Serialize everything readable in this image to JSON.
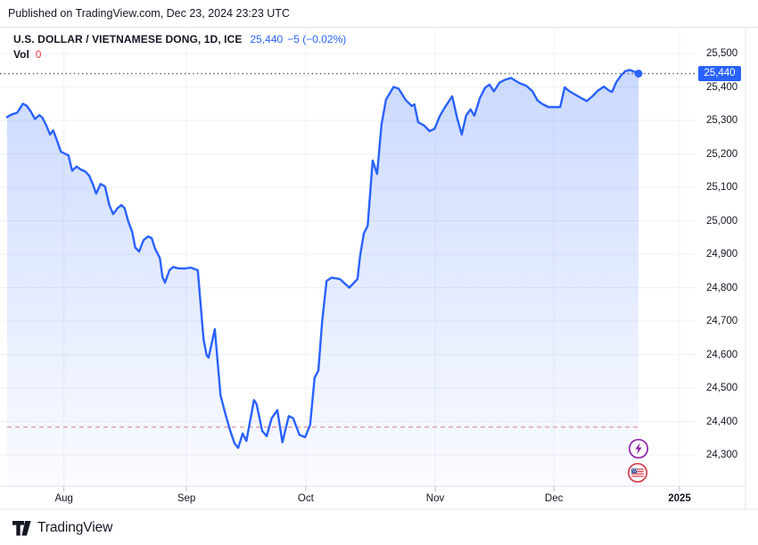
{
  "published_bar": {
    "text": "Published on TradingView.com, Dec 23, 2024 23:23 UTC"
  },
  "legend": {
    "title": "U.S. DOLLAR / VIETNAMESE DONG, 1D, ICE",
    "last_price": "25,440",
    "change": "−5 (−0.02%)",
    "volume_label": "Vol",
    "volume_value": "0"
  },
  "price_scale": {
    "badge_value": "25,440",
    "tick_labels": [
      "25,500",
      "25,400",
      "25,300",
      "25,200",
      "25,100",
      "25,000",
      "24,900",
      "24,800",
      "24,700",
      "24,600",
      "24,500",
      "24,400",
      "24,300"
    ]
  },
  "time_scale": {
    "ticks": [
      {
        "label": "Aug",
        "t": 0.09,
        "bold": false
      },
      {
        "label": "Sep",
        "t": 0.284,
        "bold": false
      },
      {
        "label": "Oct",
        "t": 0.473,
        "bold": false
      },
      {
        "label": "Nov",
        "t": 0.678,
        "bold": false
      },
      {
        "label": "Dec",
        "t": 0.866,
        "bold": false
      },
      {
        "label": "2025",
        "t": 1.065,
        "bold": true
      }
    ]
  },
  "markers": [
    {
      "name": "economic-event",
      "icon": "lightning-icon",
      "color": "#8e24aa"
    },
    {
      "name": "us-market-holiday",
      "icon": "us-flag-icon",
      "color": "#d43a49"
    }
  ],
  "footer": {
    "brand": "TradingView"
  },
  "colors": {
    "accent_blue": "#2962FF",
    "negative_red": "#F23645",
    "grid": "#f0f2f8",
    "border": "#e0e3eb",
    "text_dark": "#131722",
    "dotted_price_line": "#4a4e59",
    "dashed_low_line": "#d5555b"
  },
  "chart_data": {
    "type": "area",
    "title": "U.S. DOLLAR / VIETNAMESE DONG, 1D, ICE",
    "symbol": "U.S. DOLLAR / VIETNAMESE DONG",
    "timeframe": "1D",
    "exchange": "ICE",
    "last_price": 25440,
    "change": -5,
    "change_pct": -0.02,
    "current_price_line": 25440,
    "reference_dashed_line": 24383,
    "y_ticks": [
      25500,
      25400,
      25300,
      25200,
      25100,
      25000,
      24900,
      24800,
      24700,
      24600,
      24500,
      24400,
      24300
    ],
    "y_axis_range": [
      24250,
      25545
    ],
    "x_tick_labels": [
      "Aug",
      "Sep",
      "Oct",
      "Nov",
      "Dec",
      "2025"
    ],
    "legend_position": "top-left",
    "grid": true,
    "series": [
      {
        "name": "USD/VND",
        "color": "#2962FF",
        "points": [
          [
            0.0,
            25310
          ],
          [
            0.007,
            25318
          ],
          [
            0.016,
            25323
          ],
          [
            0.025,
            25350
          ],
          [
            0.031,
            25344
          ],
          [
            0.037,
            25328
          ],
          [
            0.044,
            25304
          ],
          [
            0.051,
            25316
          ],
          [
            0.056,
            25308
          ],
          [
            0.062,
            25285
          ],
          [
            0.068,
            25258
          ],
          [
            0.073,
            25270
          ],
          [
            0.079,
            25240
          ],
          [
            0.085,
            25207
          ],
          [
            0.092,
            25200
          ],
          [
            0.097,
            25196
          ],
          [
            0.103,
            25150
          ],
          [
            0.11,
            25162
          ],
          [
            0.117,
            25153
          ],
          [
            0.124,
            25147
          ],
          [
            0.13,
            25135
          ],
          [
            0.136,
            25108
          ],
          [
            0.141,
            25081
          ],
          [
            0.148,
            25110
          ],
          [
            0.155,
            25103
          ],
          [
            0.162,
            25046
          ],
          [
            0.168,
            25020
          ],
          [
            0.175,
            25038
          ],
          [
            0.181,
            25047
          ],
          [
            0.186,
            25038
          ],
          [
            0.192,
            24998
          ],
          [
            0.198,
            24967
          ],
          [
            0.203,
            24920
          ],
          [
            0.209,
            24908
          ],
          [
            0.216,
            24942
          ],
          [
            0.223,
            24953
          ],
          [
            0.229,
            24948
          ],
          [
            0.234,
            24918
          ],
          [
            0.242,
            24888
          ],
          [
            0.246,
            24832
          ],
          [
            0.25,
            24815
          ],
          [
            0.257,
            24852
          ],
          [
            0.263,
            24862
          ],
          [
            0.271,
            24858
          ],
          [
            0.281,
            24857
          ],
          [
            0.291,
            24860
          ],
          [
            0.302,
            24852
          ],
          [
            0.311,
            24647
          ],
          [
            0.316,
            24598
          ],
          [
            0.319,
            24591
          ],
          [
            0.329,
            24676
          ],
          [
            0.338,
            24478
          ],
          [
            0.346,
            24420
          ],
          [
            0.353,
            24375
          ],
          [
            0.36,
            24335
          ],
          [
            0.366,
            24321
          ],
          [
            0.373,
            24364
          ],
          [
            0.379,
            24342
          ],
          [
            0.391,
            24464
          ],
          [
            0.395,
            24452
          ],
          [
            0.404,
            24372
          ],
          [
            0.411,
            24356
          ],
          [
            0.419,
            24410
          ],
          [
            0.428,
            24434
          ],
          [
            0.436,
            24338
          ],
          [
            0.446,
            24416
          ],
          [
            0.453,
            24410
          ],
          [
            0.463,
            24360
          ],
          [
            0.472,
            24353
          ],
          [
            0.48,
            24390
          ],
          [
            0.487,
            24531
          ],
          [
            0.493,
            24552
          ],
          [
            0.499,
            24700
          ],
          [
            0.506,
            24820
          ],
          [
            0.514,
            24830
          ],
          [
            0.527,
            24826
          ],
          [
            0.542,
            24800
          ],
          [
            0.555,
            24826
          ],
          [
            0.559,
            24895
          ],
          [
            0.565,
            24962
          ],
          [
            0.571,
            24985
          ],
          [
            0.579,
            25180
          ],
          [
            0.586,
            25140
          ],
          [
            0.593,
            25287
          ],
          [
            0.6,
            25362
          ],
          [
            0.612,
            25400
          ],
          [
            0.62,
            25395
          ],
          [
            0.631,
            25362
          ],
          [
            0.641,
            25343
          ],
          [
            0.645,
            25348
          ],
          [
            0.651,
            25295
          ],
          [
            0.661,
            25284
          ],
          [
            0.669,
            25268
          ],
          [
            0.677,
            25275
          ],
          [
            0.685,
            25312
          ],
          [
            0.693,
            25338
          ],
          [
            0.705,
            25372
          ],
          [
            0.713,
            25305
          ],
          [
            0.72,
            25258
          ],
          [
            0.727,
            25315
          ],
          [
            0.734,
            25333
          ],
          [
            0.74,
            25314
          ],
          [
            0.749,
            25368
          ],
          [
            0.757,
            25398
          ],
          [
            0.764,
            25407
          ],
          [
            0.771,
            25387
          ],
          [
            0.78,
            25413
          ],
          [
            0.789,
            25422
          ],
          [
            0.798,
            25427
          ],
          [
            0.804,
            25420
          ],
          [
            0.812,
            25411
          ],
          [
            0.822,
            25404
          ],
          [
            0.832,
            25387
          ],
          [
            0.84,
            25360
          ],
          [
            0.847,
            25350
          ],
          [
            0.857,
            25340
          ],
          [
            0.876,
            25340
          ],
          [
            0.883,
            25399
          ],
          [
            0.89,
            25388
          ],
          [
            0.898,
            25379
          ],
          [
            0.907,
            25369
          ],
          [
            0.918,
            25358
          ],
          [
            0.927,
            25372
          ],
          [
            0.935,
            25388
          ],
          [
            0.945,
            25401
          ],
          [
            0.953,
            25390
          ],
          [
            0.958,
            25385
          ],
          [
            0.965,
            25415
          ],
          [
            0.972,
            25434
          ],
          [
            0.979,
            25447
          ],
          [
            0.986,
            25451
          ],
          [
            0.993,
            25446
          ],
          [
            1.0,
            25440
          ]
        ]
      }
    ]
  }
}
